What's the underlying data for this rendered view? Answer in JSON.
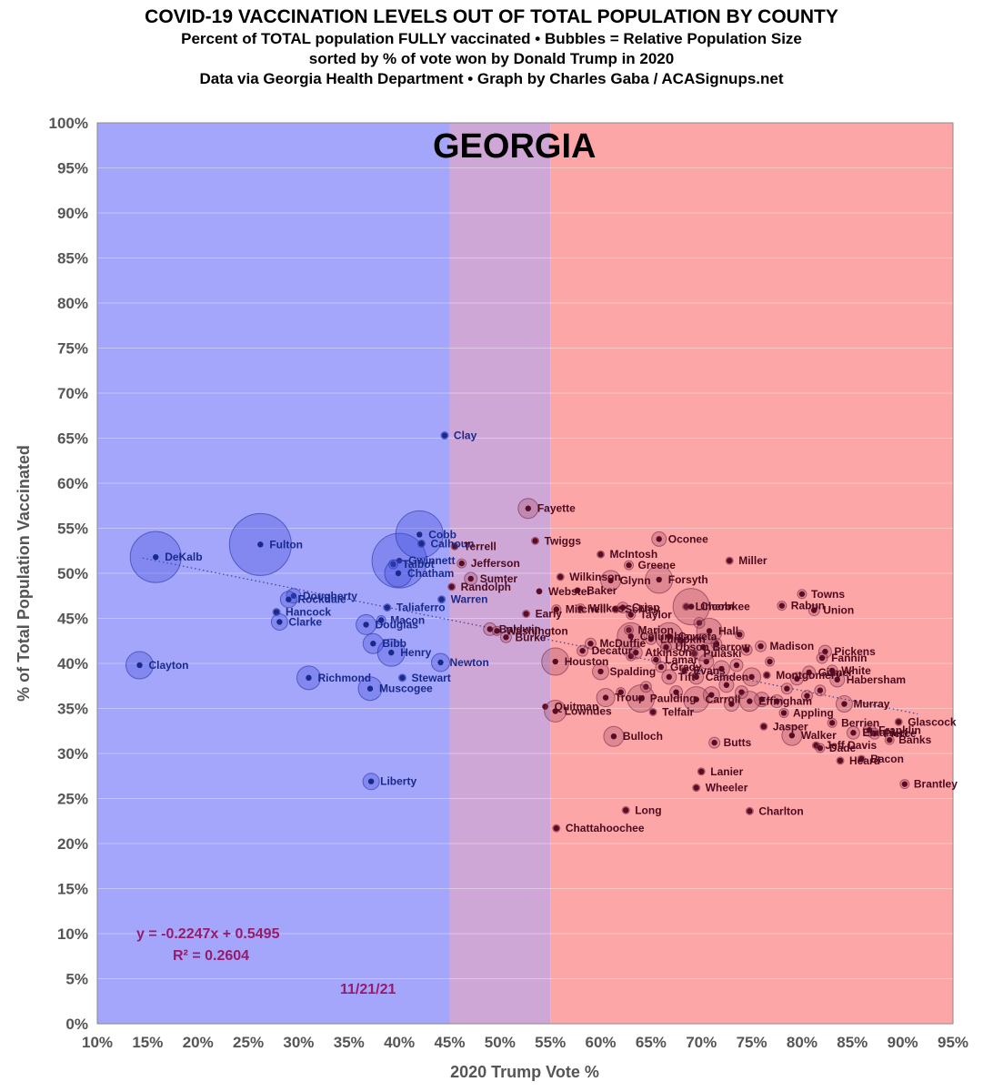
{
  "header": {
    "title": "COVID-19 VACCINATION LEVELS OUT OF TOTAL POPULATION BY COUNTY",
    "subtitle1": "Percent of TOTAL population FULLY vaccinated • Bubbles = Relative Population Size",
    "subtitle2": "sorted by % of vote won by Donald Trump in 2020",
    "subtitle3": "Data via Georgia Health Department • Graph by Charles Gaba / ACASignups.net"
  },
  "colors": {
    "blue_zone": "#a3a6fb",
    "purple_zone": "#cfa7d6",
    "red_zone": "#fda6a7",
    "blue_point": "#1a2a8a",
    "red_point": "#5a0c24",
    "blue_label": "#1a2a8a",
    "red_label": "#4d0a1e"
  },
  "chart_data": {
    "type": "scatter",
    "state_label": "GEORGIA",
    "xlabel": "2020 Trump Vote %",
    "ylabel": "% of Total Population Vaccinated",
    "xlim": [
      10,
      95
    ],
    "ylim": [
      0,
      100
    ],
    "x_ticks": [
      "10%",
      "15%",
      "20%",
      "25%",
      "30%",
      "35%",
      "40%",
      "45%",
      "50%",
      "55%",
      "60%",
      "65%",
      "70%",
      "75%",
      "80%",
      "85%",
      "90%",
      "95%"
    ],
    "y_ticks": [
      "0%",
      "5%",
      "10%",
      "15%",
      "20%",
      "25%",
      "30%",
      "35%",
      "40%",
      "45%",
      "50%",
      "55%",
      "60%",
      "65%",
      "70%",
      "75%",
      "80%",
      "85%",
      "90%",
      "95%",
      "100%"
    ],
    "zones": [
      {
        "from": 10,
        "to": 45,
        "color": "#a3a6fb"
      },
      {
        "from": 45,
        "to": 55,
        "color": "#cfa7d6"
      },
      {
        "from": 55,
        "to": 95,
        "color": "#fda6a7"
      }
    ],
    "trendline": {
      "equation": "y = -0.2247x + 0.5495",
      "r2": "R² = 0.2604",
      "slope": -0.2247,
      "intercept": 0.5495
    },
    "date_label": "11/21/21",
    "points": [
      {
        "name": "DeKalb",
        "x": 15.8,
        "y": 51.8,
        "size": 28
      },
      {
        "name": "Clayton",
        "x": 14.2,
        "y": 39.8,
        "size": 15
      },
      {
        "name": "Fulton",
        "x": 26.2,
        "y": 53.2,
        "size": 34
      },
      {
        "name": "Dougherty",
        "x": 29.5,
        "y": 47.5,
        "size": 8
      },
      {
        "name": "Rockdale",
        "x": 29.0,
        "y": 47.1,
        "size": 9
      },
      {
        "name": "Hancock",
        "x": 27.8,
        "y": 45.7,
        "size": 4
      },
      {
        "name": "Clarke",
        "x": 28.1,
        "y": 44.6,
        "size": 9
      },
      {
        "name": "Richmond",
        "x": 31.0,
        "y": 38.4,
        "size": 13
      },
      {
        "name": "Douglas",
        "x": 36.7,
        "y": 44.3,
        "size": 11
      },
      {
        "name": "Bibb",
        "x": 37.4,
        "y": 42.2,
        "size": 11
      },
      {
        "name": "Henry",
        "x": 39.2,
        "y": 41.2,
        "size": 15
      },
      {
        "name": "Muscogee",
        "x": 37.1,
        "y": 37.2,
        "size": 13
      },
      {
        "name": "Liberty",
        "x": 37.2,
        "y": 26.9,
        "size": 9
      },
      {
        "name": "Taliaferro",
        "x": 38.8,
        "y": 46.2,
        "size": 4
      },
      {
        "name": "Macon",
        "x": 38.2,
        "y": 44.8,
        "size": 5
      },
      {
        "name": "Gwinnett",
        "x": 40.0,
        "y": 51.4,
        "size": 30
      },
      {
        "name": "Talbot",
        "x": 39.4,
        "y": 51.0,
        "size": 5
      },
      {
        "name": "Chatham",
        "x": 39.9,
        "y": 50.0,
        "size": 15
      },
      {
        "name": "Cobb",
        "x": 42.0,
        "y": 54.3,
        "size": 26
      },
      {
        "name": "Calhoun",
        "x": 42.2,
        "y": 53.3,
        "size": 4
      },
      {
        "name": "Stewart",
        "x": 40.3,
        "y": 38.4,
        "size": 4
      },
      {
        "name": "Clay",
        "x": 44.5,
        "y": 65.3,
        "size": 4
      },
      {
        "name": "Warren",
        "x": 44.2,
        "y": 47.1,
        "size": 4
      },
      {
        "name": "Newton",
        "x": 44.1,
        "y": 40.1,
        "size": 10
      },
      {
        "name": "Terrell",
        "x": 45.5,
        "y": 53.0,
        "size": 4
      },
      {
        "name": "Jefferson",
        "x": 46.2,
        "y": 51.1,
        "size": 5
      },
      {
        "name": "Randolph",
        "x": 45.2,
        "y": 48.5,
        "size": 4
      },
      {
        "name": "Sumter",
        "x": 47.1,
        "y": 49.4,
        "size": 7
      },
      {
        "name": "Baldwin",
        "x": 49.0,
        "y": 43.8,
        "size": 7
      },
      {
        "name": "Washington",
        "x": 49.7,
        "y": 43.6,
        "size": 5
      },
      {
        "name": "Burke",
        "x": 50.6,
        "y": 42.9,
        "size": 6
      },
      {
        "name": "Twiggs",
        "x": 53.5,
        "y": 53.6,
        "size": 4
      },
      {
        "name": "Fayette",
        "x": 52.8,
        "y": 57.2,
        "size": 11
      },
      {
        "name": "Early",
        "x": 52.6,
        "y": 45.5,
        "size": 4
      },
      {
        "name": "Webster",
        "x": 53.9,
        "y": 48.0,
        "size": 3
      },
      {
        "name": "Quitman",
        "x": 54.5,
        "y": 35.2,
        "size": 3
      },
      {
        "name": "Lowndes",
        "x": 55.5,
        "y": 34.7,
        "size": 12
      },
      {
        "name": "Houston",
        "x": 55.5,
        "y": 40.2,
        "size": 15
      },
      {
        "name": "Mitchell",
        "x": 55.6,
        "y": 46.0,
        "size": 5
      },
      {
        "name": "Wilkinson",
        "x": 56.0,
        "y": 49.6,
        "size": 4
      },
      {
        "name": "Baker",
        "x": 57.7,
        "y": 48.1,
        "size": 3
      },
      {
        "name": "Wilkes",
        "x": 58.0,
        "y": 46.1,
        "size": 5
      },
      {
        "name": "Decatur",
        "x": 58.2,
        "y": 41.4,
        "size": 6
      },
      {
        "name": "McDuffie",
        "x": 59.0,
        "y": 42.2,
        "size": 6
      },
      {
        "name": "Spalding",
        "x": 60.0,
        "y": 39.1,
        "size": 9
      },
      {
        "name": "McIntosh",
        "x": 60.0,
        "y": 52.1,
        "size": 4
      },
      {
        "name": "Glynn",
        "x": 61.0,
        "y": 49.2,
        "size": 11
      },
      {
        "name": "Schley",
        "x": 61.5,
        "y": 46.0,
        "size": 4
      },
      {
        "name": "Crisp",
        "x": 62.2,
        "y": 46.2,
        "size": 6
      },
      {
        "name": "Taylor",
        "x": 63.0,
        "y": 45.4,
        "size": 5
      },
      {
        "name": "Troup",
        "x": 60.5,
        "y": 36.2,
        "size": 10
      },
      {
        "name": "Bulloch",
        "x": 61.3,
        "y": 31.9,
        "size": 11
      },
      {
        "name": "Marion",
        "x": 62.8,
        "y": 43.7,
        "size": 5
      },
      {
        "name": "Columbia",
        "x": 63.0,
        "y": 43.0,
        "size": 15
      },
      {
        "name": "Atkinson",
        "x": 63.5,
        "y": 41.2,
        "size": 7
      },
      {
        "name": "Paulding",
        "x": 64.0,
        "y": 36.1,
        "size": 15
      },
      {
        "name": "Telfair",
        "x": 65.2,
        "y": 34.6,
        "size": 4
      },
      {
        "name": "Greene",
        "x": 62.8,
        "y": 50.9,
        "size": 5
      },
      {
        "name": "Forsyth",
        "x": 65.8,
        "y": 49.3,
        "size": 15
      },
      {
        "name": "Oconee",
        "x": 65.8,
        "y": 53.8,
        "size": 8
      },
      {
        "name": "Lumpkin",
        "x": 65.0,
        "y": 42.7,
        "size": 6
      },
      {
        "name": "Coweta",
        "x": 66.8,
        "y": 43.0,
        "size": 15
      },
      {
        "name": "Upson",
        "x": 66.5,
        "y": 41.8,
        "size": 6
      },
      {
        "name": "Lamar",
        "x": 65.5,
        "y": 40.4,
        "size": 5
      },
      {
        "name": "Grady",
        "x": 66.0,
        "y": 39.6,
        "size": 6
      },
      {
        "name": "Tift",
        "x": 66.8,
        "y": 38.5,
        "size": 8
      },
      {
        "name": "Lincoln",
        "x": 68.5,
        "y": 46.3,
        "size": 4
      },
      {
        "name": "Cherokee",
        "x": 69.0,
        "y": 46.3,
        "size": 20
      },
      {
        "name": "Hall",
        "x": 70.8,
        "y": 43.6,
        "size": 14
      },
      {
        "name": "Pulaski",
        "x": 69.3,
        "y": 41.1,
        "size": 4
      },
      {
        "name": "Barrow",
        "x": 70.2,
        "y": 41.8,
        "size": 15
      },
      {
        "name": "Evans",
        "x": 68.3,
        "y": 39.2,
        "size": 4
      },
      {
        "name": "Camden",
        "x": 69.5,
        "y": 38.5,
        "size": 8
      },
      {
        "name": "Carroll",
        "x": 69.5,
        "y": 36.0,
        "size": 14
      },
      {
        "name": "Lanier",
        "x": 70.0,
        "y": 28.0,
        "size": 4
      },
      {
        "name": "Wheeler",
        "x": 69.5,
        "y": 26.2,
        "size": 4
      },
      {
        "name": "Butts",
        "x": 71.3,
        "y": 31.2,
        "size": 6
      },
      {
        "name": "Miller",
        "x": 72.8,
        "y": 51.4,
        "size": 4
      },
      {
        "name": "Madison",
        "x": 75.9,
        "y": 41.9,
        "size": 6
      },
      {
        "name": "Montgomery",
        "x": 76.5,
        "y": 38.7,
        "size": 4
      },
      {
        "name": "Effingham",
        "x": 74.8,
        "y": 35.8,
        "size": 11
      },
      {
        "name": "Charlton",
        "x": 74.8,
        "y": 23.6,
        "size": 4
      },
      {
        "name": "Jasper",
        "x": 76.2,
        "y": 33.0,
        "size": 4
      },
      {
        "name": "Long",
        "x": 62.5,
        "y": 23.7,
        "size": 4
      },
      {
        "name": "Chattahoochee",
        "x": 55.6,
        "y": 21.7,
        "size": 4
      },
      {
        "name": "Towns",
        "x": 80.0,
        "y": 47.7,
        "size": 5
      },
      {
        "name": "Rabun",
        "x": 78.0,
        "y": 46.4,
        "size": 5
      },
      {
        "name": "Union",
        "x": 81.2,
        "y": 45.9,
        "size": 6
      },
      {
        "name": "Appling",
        "x": 78.2,
        "y": 34.5,
        "size": 5
      },
      {
        "name": "Walker",
        "x": 79.0,
        "y": 32.0,
        "size": 11
      },
      {
        "name": "Berrien",
        "x": 83.0,
        "y": 33.4,
        "size": 5
      },
      {
        "name": "Pickens",
        "x": 82.3,
        "y": 41.3,
        "size": 7
      },
      {
        "name": "Fannin",
        "x": 82.0,
        "y": 40.6,
        "size": 6
      },
      {
        "name": "White",
        "x": 83.0,
        "y": 39.2,
        "size": 6
      },
      {
        "name": "Habersham",
        "x": 83.5,
        "y": 38.2,
        "size": 8
      },
      {
        "name": "Gilmer",
        "x": 80.7,
        "y": 39.0,
        "size": 7
      },
      {
        "name": "Murray",
        "x": 84.2,
        "y": 35.5,
        "size": 9
      },
      {
        "name": "Jeff Davis",
        "x": 81.4,
        "y": 30.9,
        "size": 4
      },
      {
        "name": "Dade",
        "x": 81.8,
        "y": 30.6,
        "size": 5
      },
      {
        "name": "Heard",
        "x": 83.8,
        "y": 29.2,
        "size": 4
      },
      {
        "name": "Bacon",
        "x": 85.9,
        "y": 29.4,
        "size": 4
      },
      {
        "name": "Banks",
        "x": 88.7,
        "y": 31.5,
        "size": 5
      },
      {
        "name": "Pierce",
        "x": 87.2,
        "y": 32.2,
        "size": 6
      },
      {
        "name": "Franklin",
        "x": 86.7,
        "y": 32.6,
        "size": 7
      },
      {
        "name": "Emanuel",
        "x": 85.1,
        "y": 32.3,
        "size": 7
      },
      {
        "name": "Glascock",
        "x": 89.6,
        "y": 33.5,
        "size": 4
      },
      {
        "name": "Brantley",
        "x": 90.2,
        "y": 26.6,
        "size": 5
      }
    ],
    "extra_points": [
      {
        "x": 70.5,
        "y": 40.2,
        "size": 8
      },
      {
        "x": 72.0,
        "y": 39.4,
        "size": 9
      },
      {
        "x": 73.5,
        "y": 39.8,
        "size": 7
      },
      {
        "x": 75.0,
        "y": 38.5,
        "size": 10
      },
      {
        "x": 72.5,
        "y": 37.6,
        "size": 8
      },
      {
        "x": 74.0,
        "y": 36.8,
        "size": 7
      },
      {
        "x": 76.0,
        "y": 36.0,
        "size": 8
      },
      {
        "x": 77.5,
        "y": 35.8,
        "size": 7
      },
      {
        "x": 78.5,
        "y": 37.2,
        "size": 6
      },
      {
        "x": 79.5,
        "y": 38.3,
        "size": 7
      },
      {
        "x": 71.0,
        "y": 36.5,
        "size": 9
      },
      {
        "x": 73.0,
        "y": 35.5,
        "size": 8
      },
      {
        "x": 67.5,
        "y": 36.8,
        "size": 7
      },
      {
        "x": 64.5,
        "y": 37.4,
        "size": 6
      },
      {
        "x": 68.0,
        "y": 42.5,
        "size": 6
      },
      {
        "x": 71.5,
        "y": 42.2,
        "size": 6
      },
      {
        "x": 74.5,
        "y": 41.5,
        "size": 6
      },
      {
        "x": 76.8,
        "y": 40.2,
        "size": 5
      },
      {
        "x": 80.5,
        "y": 36.4,
        "size": 6
      },
      {
        "x": 81.8,
        "y": 37.0,
        "size": 6
      },
      {
        "x": 62.0,
        "y": 36.8,
        "size": 5
      },
      {
        "x": 63.0,
        "y": 40.8,
        "size": 5
      },
      {
        "x": 69.8,
        "y": 44.5,
        "size": 6
      },
      {
        "x": 73.8,
        "y": 43.2,
        "size": 5
      }
    ]
  }
}
